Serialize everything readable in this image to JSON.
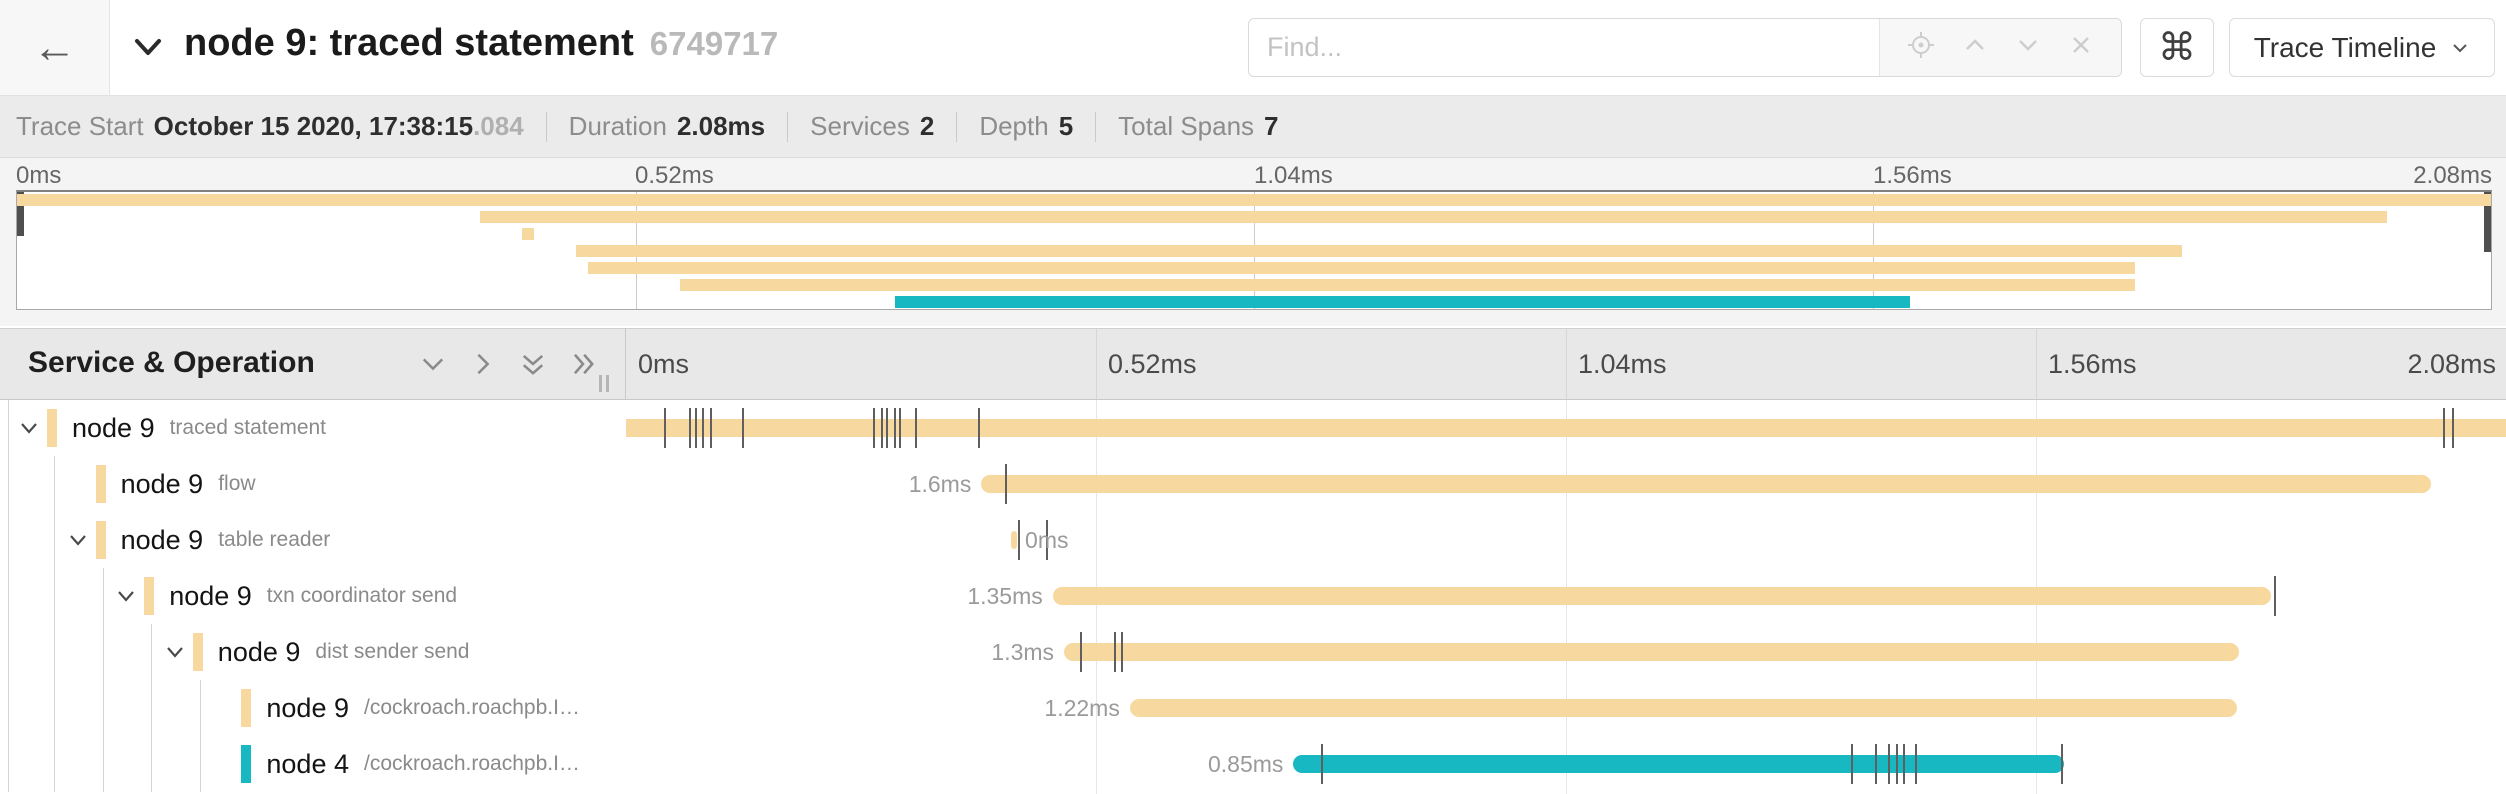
{
  "header": {
    "back_icon": "←",
    "title": "node 9: traced statement",
    "trace_id": "6749717",
    "find_placeholder": "Find...",
    "find_icons": [
      "locate-icon",
      "previous-result-icon",
      "next-result-icon",
      "clear-icon"
    ],
    "keyboard_shortcut_icon": "⌘",
    "view_selector_label": "Trace Timeline"
  },
  "summary": {
    "items": [
      {
        "label": "Trace Start",
        "value": "October 15 2020, 17:38:15",
        "suffix": ".084"
      },
      {
        "label": "Duration",
        "value": "2.08ms",
        "suffix": ""
      },
      {
        "label": "Services",
        "value": "2",
        "suffix": ""
      },
      {
        "label": "Depth",
        "value": "5",
        "suffix": ""
      },
      {
        "label": "Total Spans",
        "value": "7",
        "suffix": ""
      }
    ]
  },
  "axis": {
    "ticks": [
      "0ms",
      "0.52ms",
      "1.04ms",
      "1.56ms",
      "2.08ms"
    ],
    "tick_positions_pct": [
      0,
      25,
      50,
      75,
      100
    ]
  },
  "left_panel": {
    "title": "Service & Operation",
    "icons": [
      "collapse-one-icon",
      "expand-one-icon",
      "collapse-all-icon",
      "expand-all-icon"
    ]
  },
  "colors": {
    "tan": "#f7d9a0",
    "teal": "#17b8c2",
    "tick": "#5f5f5f"
  },
  "minimap": {
    "spans": [
      {
        "start_pct": 0,
        "width_pct": 100,
        "color": "#f7d9a0"
      },
      {
        "start_pct": 18.7,
        "width_pct": 77.1,
        "color": "#f7d9a0"
      },
      {
        "start_pct": 20.4,
        "width_pct": 0.5,
        "color": "#f7d9a0"
      },
      {
        "start_pct": 22.6,
        "width_pct": 64.9,
        "color": "#f7d9a0"
      },
      {
        "start_pct": 23.1,
        "width_pct": 62.5,
        "color": "#f7d9a0"
      },
      {
        "start_pct": 26.8,
        "width_pct": 58.8,
        "color": "#f7d9a0"
      },
      {
        "start_pct": 35.5,
        "width_pct": 41.0,
        "color": "#17b8c2"
      }
    ]
  },
  "rows": [
    {
      "service": "node 9",
      "operation": "traced statement",
      "level": 0,
      "expander": true,
      "color": "#f7d9a0",
      "label": "",
      "label_position": "none",
      "bar": {
        "start_pct": 0,
        "width_pct": 100
      },
      "ticks_pct": [
        2.1,
        3.4,
        3.7,
        4.1,
        4.5,
        6.2,
        13.2,
        13.6,
        13.9,
        14.3,
        14.6,
        15.4,
        18.8,
        96.7,
        97.2
      ]
    },
    {
      "service": "node 9",
      "operation": "flow",
      "level": 1,
      "expander": false,
      "color": "#f7d9a0",
      "label": "1.6ms",
      "label_position": "before",
      "bar": {
        "start_pct": 18.9,
        "width_pct": 77.1
      },
      "ticks_pct": [
        20.2
      ]
    },
    {
      "service": "node 9",
      "operation": "table reader",
      "level": 1,
      "expander": true,
      "color": "#f7d9a0",
      "label": "0ms",
      "label_position": "after",
      "bar": {
        "start_pct": 20.5,
        "width_pct": 0.3
      },
      "ticks_pct": [
        20.9,
        22.4
      ]
    },
    {
      "service": "node 9",
      "operation": "txn coordinator send",
      "level": 2,
      "expander": true,
      "color": "#f7d9a0",
      "label": "1.35ms",
      "label_position": "before",
      "bar": {
        "start_pct": 22.7,
        "width_pct": 64.8
      },
      "ticks_pct": [
        87.7
      ]
    },
    {
      "service": "node 9",
      "operation": "dist sender send",
      "level": 3,
      "expander": true,
      "color": "#f7d9a0",
      "label": "1.3ms",
      "label_position": "before",
      "bar": {
        "start_pct": 23.3,
        "width_pct": 62.5
      },
      "ticks_pct": [
        24.2,
        26.0,
        26.4
      ]
    },
    {
      "service": "node 9",
      "operation": "/cockroach.roachpb.I…",
      "level": 4,
      "expander": false,
      "color": "#f7d9a0",
      "label": "1.22ms",
      "label_position": "before",
      "bar": {
        "start_pct": 26.8,
        "width_pct": 58.9
      },
      "ticks_pct": []
    },
    {
      "service": "node 4",
      "operation": "/cockroach.roachpb.I…",
      "level": 4,
      "expander": false,
      "color": "#17b8c2",
      "label": "0.85ms",
      "label_position": "before",
      "bar": {
        "start_pct": 35.5,
        "width_pct": 41.0
      },
      "ticks_pct": [
        37.0,
        65.2,
        66.5,
        67.2,
        67.6,
        68.0,
        68.6,
        76.4
      ]
    }
  ]
}
